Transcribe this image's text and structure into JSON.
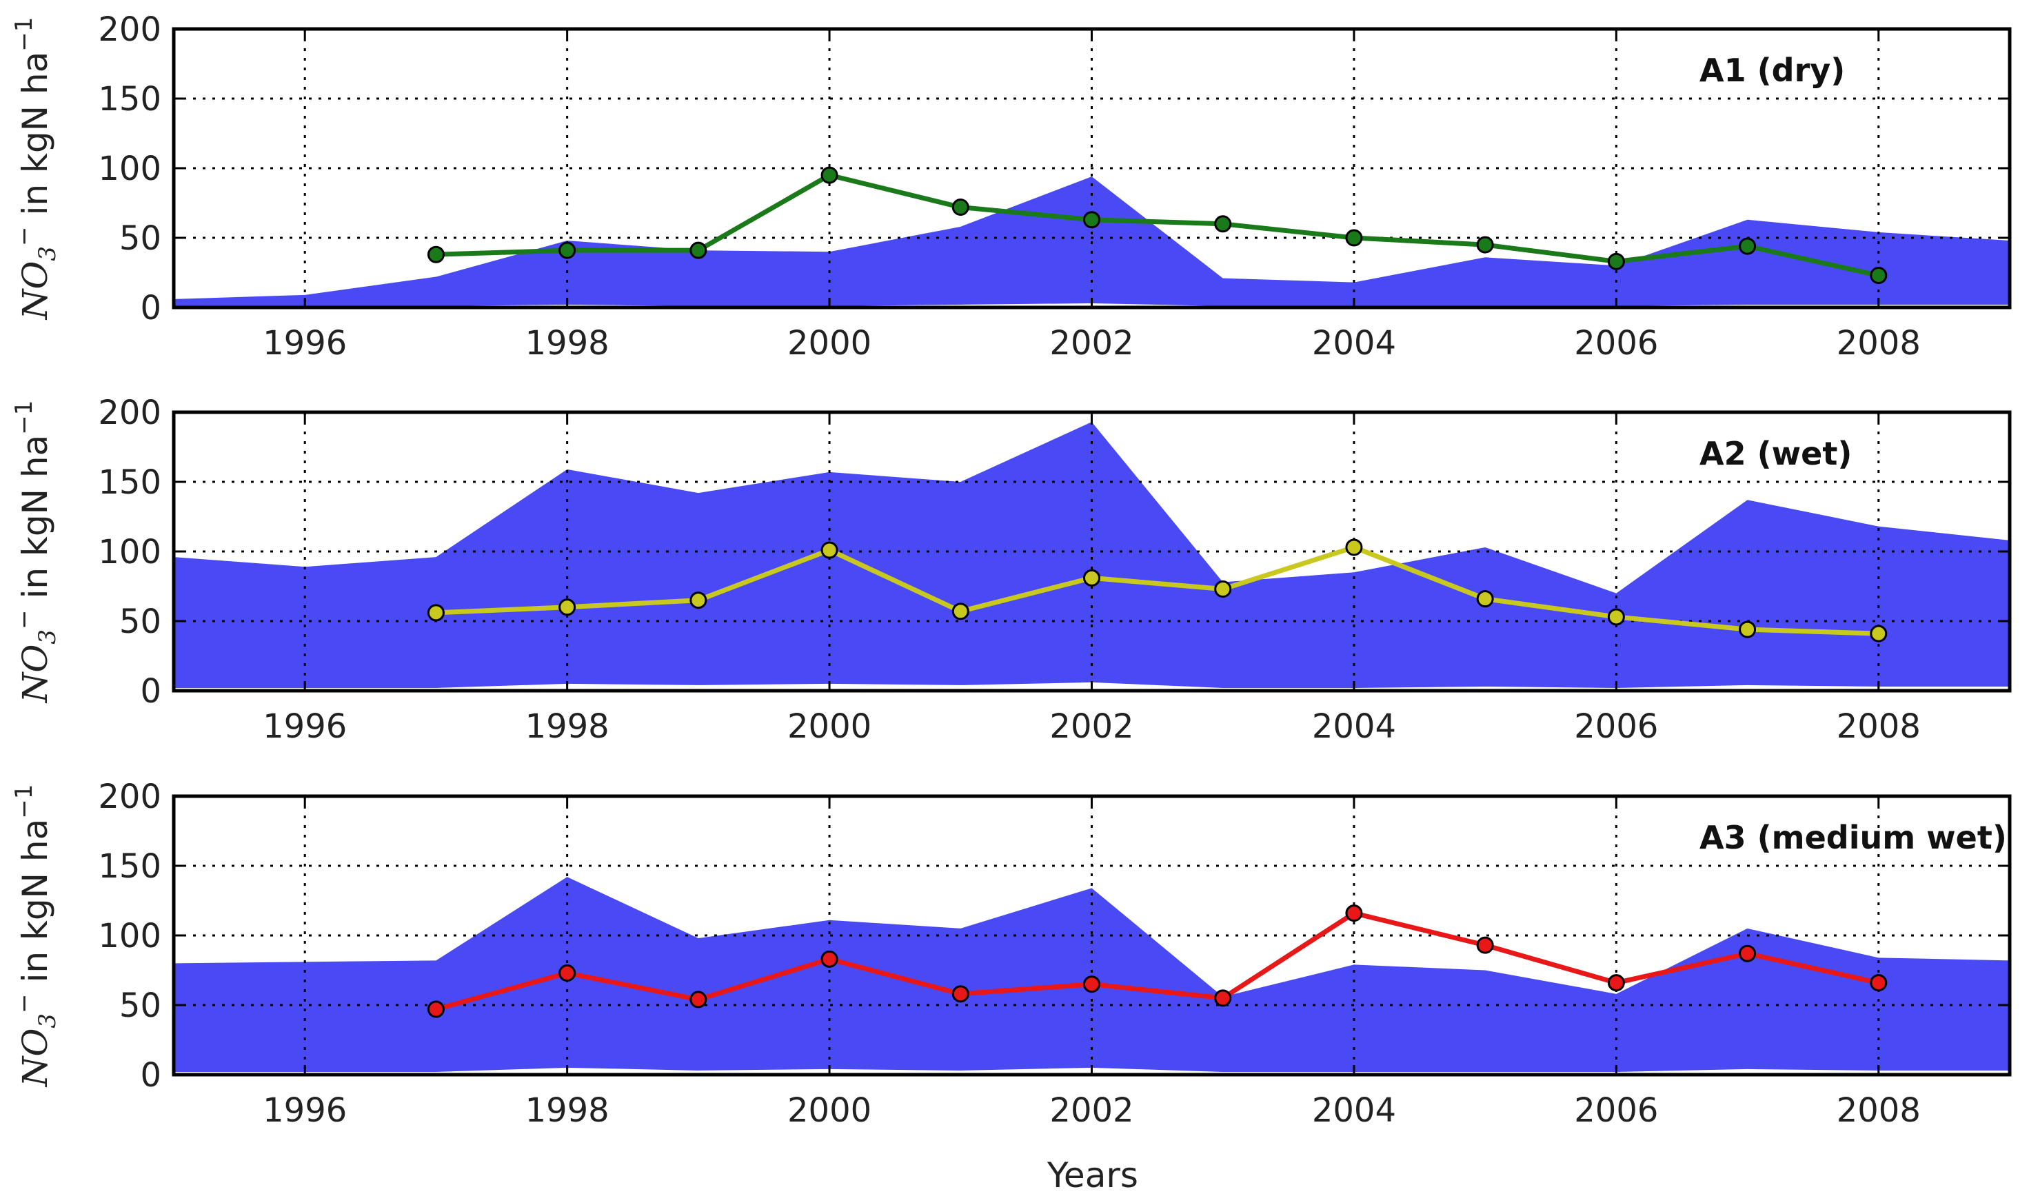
{
  "figure": {
    "xlabel": "Years"
  },
  "chart_data": [
    {
      "type": "line",
      "title": "A1 (dry)",
      "xlabel": "",
      "ylabel": "NO3− in kgN ha−1",
      "ylabel_parts": {
        "species": "NO",
        "sub": "3",
        "sup": "−",
        "unit": " in kgN ha",
        "unit_sup": "−1"
      },
      "xlim": [
        1995,
        2009
      ],
      "ylim": [
        0,
        200
      ],
      "xticks": [
        1996,
        1998,
        2000,
        2002,
        2004,
        2006,
        2008
      ],
      "yticks": [
        0,
        50,
        100,
        150,
        200
      ],
      "grid": true,
      "band": {
        "color": "#4a4af5",
        "x": [
          1995,
          1996,
          1997,
          1998,
          1999,
          2000,
          2001,
          2002,
          2003,
          2004,
          2005,
          2006,
          2007,
          2008,
          2009
        ],
        "upper": [
          6,
          9,
          22,
          48,
          41,
          40,
          58,
          94,
          21,
          18,
          36,
          30,
          63,
          54,
          48
        ],
        "lower": [
          0,
          0,
          1,
          2,
          1,
          1,
          2,
          3,
          1,
          1,
          1,
          1,
          2,
          2,
          2
        ]
      },
      "series": [
        {
          "name": "A1",
          "color": "#1a7a1a",
          "x": [
            1997,
            1998,
            1999,
            2000,
            2001,
            2002,
            2003,
            2004,
            2005,
            2006,
            2007,
            2008
          ],
          "values": [
            38,
            41,
            41,
            95,
            72,
            63,
            60,
            50,
            45,
            33,
            44,
            23
          ]
        }
      ]
    },
    {
      "type": "line",
      "title": "A2 (wet)",
      "xlabel": "",
      "ylabel": "NO3− in kgN ha−1",
      "ylabel_parts": {
        "species": "NO",
        "sub": "3",
        "sup": "−",
        "unit": " in kgN ha",
        "unit_sup": "−1"
      },
      "xlim": [
        1995,
        2009
      ],
      "ylim": [
        0,
        200
      ],
      "xticks": [
        1996,
        1998,
        2000,
        2002,
        2004,
        2006,
        2008
      ],
      "yticks": [
        0,
        50,
        100,
        150,
        200
      ],
      "grid": true,
      "band": {
        "color": "#4a4af5",
        "x": [
          1995,
          1996,
          1997,
          1998,
          1999,
          2000,
          2001,
          2002,
          2003,
          2004,
          2005,
          2006,
          2007,
          2008,
          2009
        ],
        "upper": [
          96,
          89,
          96,
          159,
          142,
          157,
          150,
          193,
          78,
          85,
          103,
          70,
          137,
          118,
          108
        ],
        "lower": [
          2,
          2,
          2,
          5,
          4,
          5,
          4,
          6,
          2,
          2,
          3,
          2,
          4,
          3,
          3
        ]
      },
      "series": [
        {
          "name": "A2",
          "color": "#c8c81e",
          "x": [
            1997,
            1998,
            1999,
            2000,
            2001,
            2002,
            2003,
            2004,
            2005,
            2006,
            2007,
            2008
          ],
          "values": [
            56,
            60,
            65,
            101,
            57,
            81,
            73,
            103,
            66,
            53,
            44,
            41
          ]
        }
      ]
    },
    {
      "type": "line",
      "title": "A3 (medium wet)",
      "xlabel": "Years",
      "ylabel": "NO3− in kgN ha−1",
      "ylabel_parts": {
        "species": "NO",
        "sub": "3",
        "sup": "−",
        "unit": " in kgN ha",
        "unit_sup": "−1"
      },
      "xlim": [
        1995,
        2009
      ],
      "ylim": [
        0,
        200
      ],
      "xticks": [
        1996,
        1998,
        2000,
        2002,
        2004,
        2006,
        2008
      ],
      "yticks": [
        0,
        50,
        100,
        150,
        200
      ],
      "grid": true,
      "band": {
        "color": "#4a4af5",
        "x": [
          1995,
          1996,
          1997,
          1998,
          1999,
          2000,
          2001,
          2002,
          2003,
          2004,
          2005,
          2006,
          2007,
          2008,
          2009
        ],
        "upper": [
          80,
          81,
          82,
          142,
          98,
          111,
          105,
          134,
          56,
          79,
          75,
          58,
          105,
          84,
          82
        ],
        "lower": [
          2,
          2,
          2,
          5,
          3,
          4,
          3,
          5,
          2,
          2,
          2,
          2,
          4,
          3,
          3
        ]
      },
      "series": [
        {
          "name": "A3",
          "color": "#e81818",
          "x": [
            1997,
            1998,
            1999,
            2000,
            2001,
            2002,
            2003,
            2004,
            2005,
            2006,
            2007,
            2008
          ],
          "values": [
            47,
            73,
            54,
            83,
            58,
            65,
            55,
            116,
            93,
            66,
            87,
            66
          ]
        }
      ]
    }
  ]
}
